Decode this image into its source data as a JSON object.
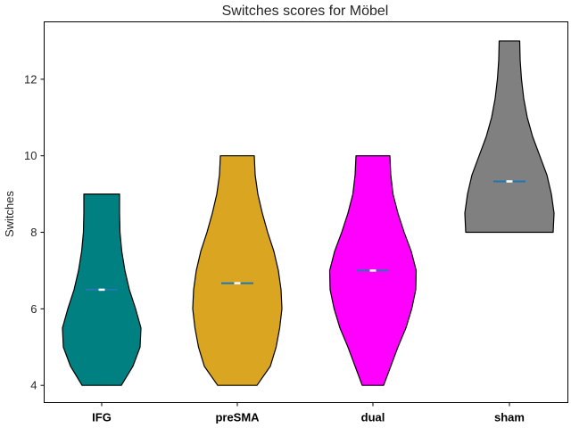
{
  "chart_data": {
    "type": "violin",
    "title": "Switches scores for Möbel",
    "xlabel": "",
    "ylabel": "Switches",
    "ylim": [
      3.55,
      13.5
    ],
    "yticks": [
      4,
      6,
      8,
      10,
      12
    ],
    "categories": [
      "IFG",
      "preSMA",
      "dual",
      "sham"
    ],
    "series": [
      {
        "category": "IFG",
        "color": "#008080",
        "min": 4,
        "max": 9,
        "mean": 6.5,
        "median": 6.5,
        "profile": [
          [
            4,
            0.44
          ],
          [
            4.5,
            0.7
          ],
          [
            5,
            0.86
          ],
          [
            5.5,
            0.88
          ],
          [
            6,
            0.76
          ],
          [
            6.5,
            0.62
          ],
          [
            7,
            0.52
          ],
          [
            7.5,
            0.45
          ],
          [
            8,
            0.41
          ],
          [
            8.5,
            0.4
          ],
          [
            9,
            0.4
          ]
        ]
      },
      {
        "category": "preSMA",
        "color": "#DAA520",
        "min": 4,
        "max": 10,
        "mean": 6.67,
        "median": 6.67,
        "profile": [
          [
            4,
            0.44
          ],
          [
            4.5,
            0.74
          ],
          [
            5,
            0.87
          ],
          [
            5.5,
            0.95
          ],
          [
            6,
            1.0
          ],
          [
            6.5,
            0.98
          ],
          [
            7,
            0.92
          ],
          [
            7.5,
            0.82
          ],
          [
            8,
            0.68
          ],
          [
            8.5,
            0.56
          ],
          [
            9,
            0.46
          ],
          [
            9.5,
            0.4
          ],
          [
            10,
            0.38
          ]
        ]
      },
      {
        "category": "dual",
        "color": "#FF00FF",
        "min": 4,
        "max": 10,
        "mean": 7,
        "median": 7,
        "profile": [
          [
            4,
            0.24
          ],
          [
            4.5,
            0.4
          ],
          [
            5,
            0.56
          ],
          [
            5.5,
            0.74
          ],
          [
            6,
            0.87
          ],
          [
            6.5,
            0.96
          ],
          [
            7,
            0.97
          ],
          [
            7.5,
            0.86
          ],
          [
            8,
            0.7
          ],
          [
            8.5,
            0.56
          ],
          [
            9,
            0.45
          ],
          [
            9.5,
            0.4
          ],
          [
            10,
            0.38
          ]
        ]
      },
      {
        "category": "sham",
        "color": "#808080",
        "min": 8,
        "max": 13,
        "mean": 9.33,
        "median": 9.33,
        "profile": [
          [
            8,
            0.98
          ],
          [
            8.5,
            1.0
          ],
          [
            9,
            0.94
          ],
          [
            9.5,
            0.84
          ],
          [
            10,
            0.68
          ],
          [
            10.5,
            0.52
          ],
          [
            11,
            0.4
          ],
          [
            11.5,
            0.32
          ],
          [
            12,
            0.27
          ],
          [
            12.5,
            0.24
          ],
          [
            13,
            0.23
          ]
        ]
      }
    ],
    "mean_line_color": "#1f77b4",
    "median_marker_color": "#ffffff",
    "grid": false,
    "legend": "none"
  }
}
